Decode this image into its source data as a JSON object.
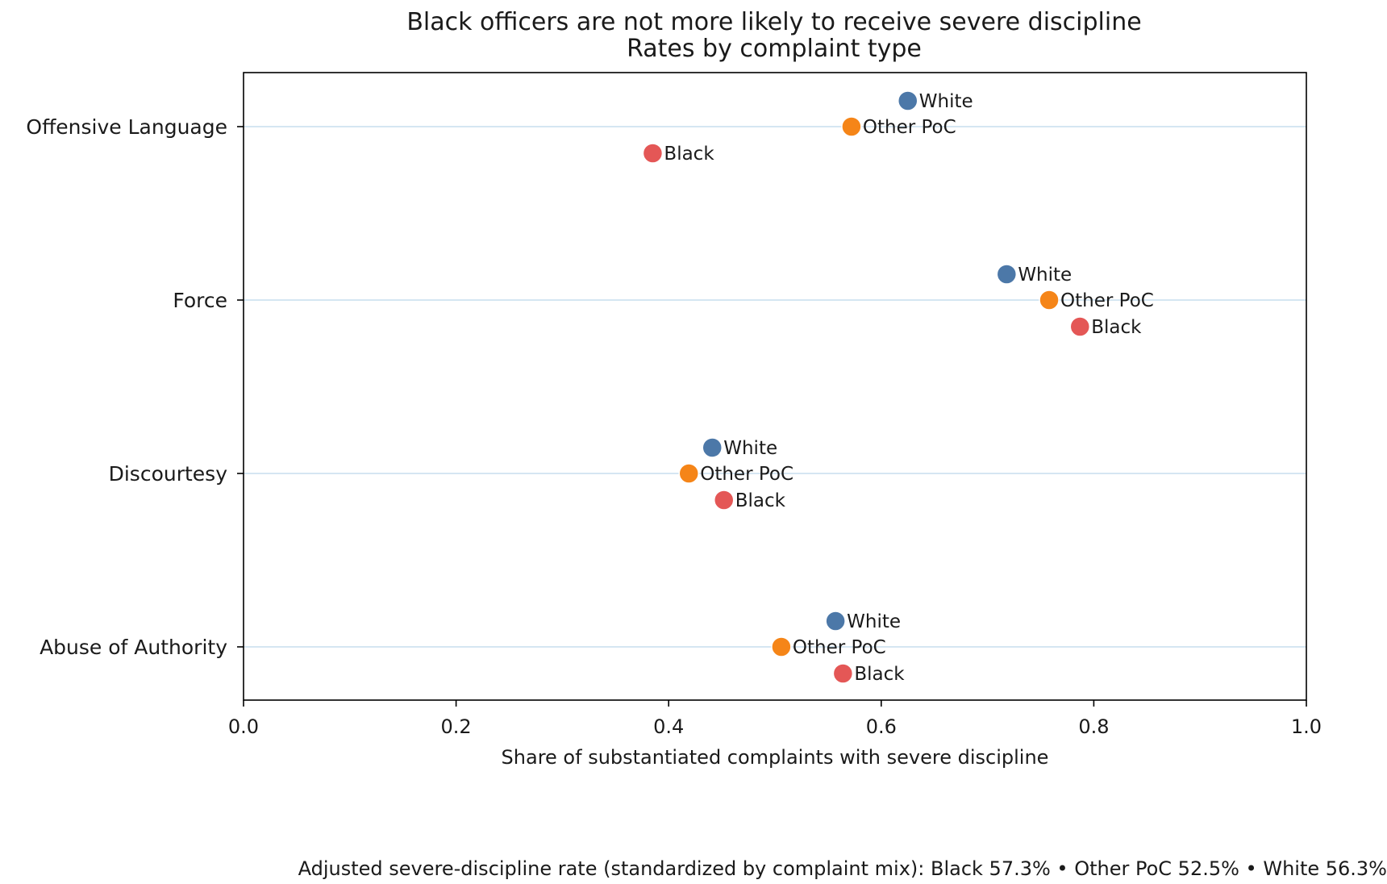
{
  "chart_data": {
    "type": "scatter",
    "title": "Black officers are not more likely to receive severe discipline",
    "subtitle": "Rates by complaint type",
    "xlabel": "Share of substantiated complaints with severe discipline",
    "ylabel": "",
    "xlim": [
      0.0,
      1.0
    ],
    "xticks": [
      "0.0",
      "0.2",
      "0.4",
      "0.6",
      "0.8",
      "1.0"
    ],
    "xtick_values": [
      0.0,
      0.2,
      0.4,
      0.6,
      0.8,
      1.0
    ],
    "categories": [
      "Offensive Language",
      "Force",
      "Discourtesy",
      "Abuse of Authority"
    ],
    "grid": "horizontal",
    "legend": "none (points labeled directly)",
    "series": [
      {
        "name": "White",
        "color": "#4c78a8",
        "values": [
          0.625,
          0.718,
          0.441,
          0.557
        ]
      },
      {
        "name": "Other PoC",
        "color": "#f58518",
        "values": [
          0.572,
          0.758,
          0.419,
          0.506
        ]
      },
      {
        "name": "Black",
        "color": "#e45756",
        "values": [
          0.385,
          0.787,
          0.452,
          0.564
        ]
      }
    ],
    "footnote": "Adjusted severe-discipline rate (standardized by complaint mix): Black 57.3% • Other PoC 52.5% • White 56.3%"
  }
}
